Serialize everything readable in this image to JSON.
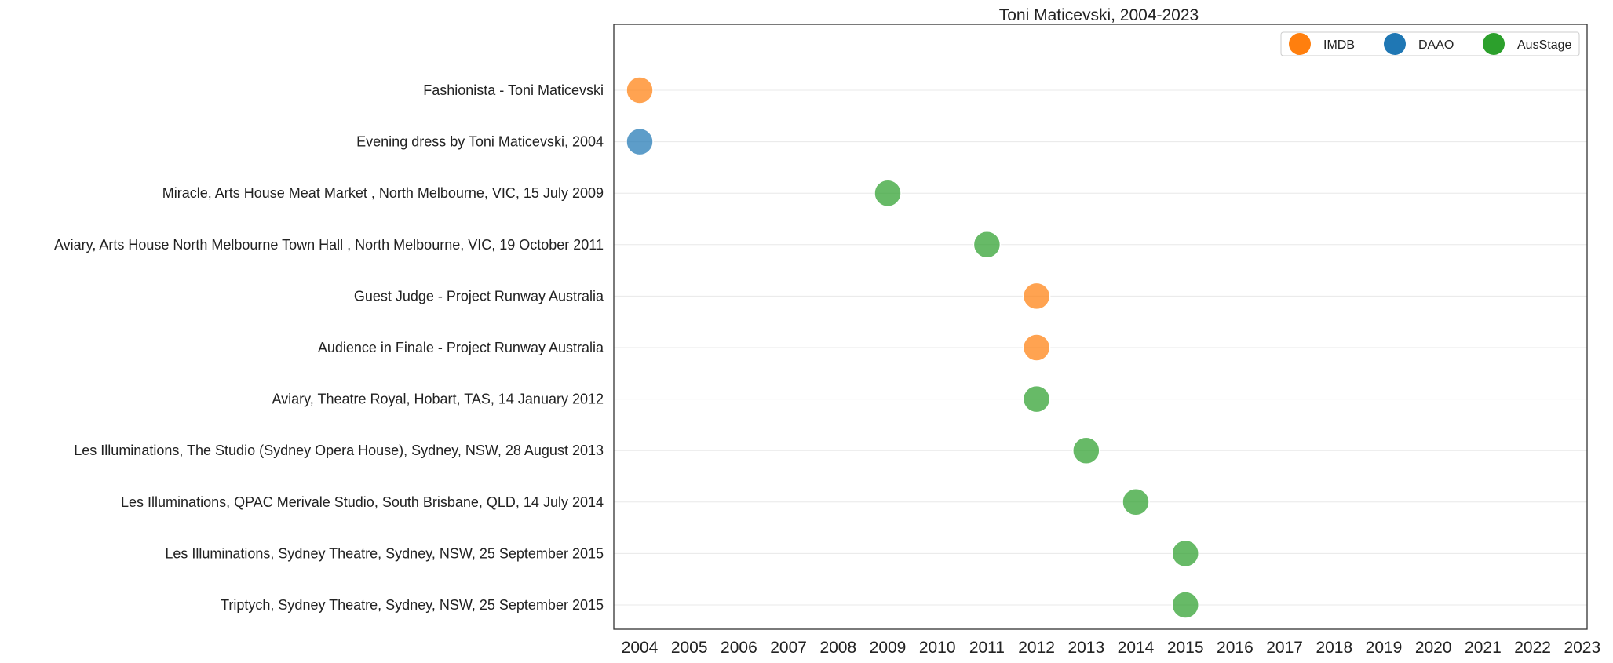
{
  "chart_data": {
    "type": "scatter",
    "title": "Toni Maticevski, 2004-2023",
    "xlabel": "",
    "ylabel": "",
    "xlim": [
      2003.6,
      2023
    ],
    "x_ticks": [
      "2004",
      "2005",
      "2006",
      "2007",
      "2008",
      "2009",
      "2010",
      "2011",
      "2012",
      "2013",
      "2014",
      "2015",
      "2016",
      "2017",
      "2018",
      "2019",
      "2020",
      "2021",
      "2022",
      "2023"
    ],
    "grid": "horizontal",
    "legend_position": "top-right",
    "legend": [
      {
        "name": "IMDB",
        "color": "#ff7f0e"
      },
      {
        "name": "DAAO",
        "color": "#1f77b4"
      },
      {
        "name": "AusStage",
        "color": "#2ca02c"
      }
    ],
    "categories": [
      "Fashionista - Toni Maticevski",
      "Evening dress by Toni Maticevski, 2004",
      "Miracle, Arts House Meat Market , North Melbourne, VIC, 15 July 2009",
      "Aviary, Arts House North Melbourne Town Hall , North Melbourne, VIC, 19 October 2011",
      "Guest Judge - Project Runway Australia ",
      "Audience in Finale - Project Runway Australia ",
      "Aviary, Theatre Royal, Hobart, TAS, 14 January 2012",
      "Les Illuminations, The Studio (Sydney Opera House), Sydney, NSW, 28 August 2013",
      "Les Illuminations, QPAC Merivale Studio, South Brisbane, QLD, 14 July 2014",
      "Les Illuminations, Sydney Theatre, Sydney, NSW, 25 September 2015",
      "Triptych, Sydney Theatre, Sydney, NSW, 25 September 2015"
    ],
    "points": [
      {
        "x": 2004,
        "source": "IMDB"
      },
      {
        "x": 2004,
        "source": "DAAO"
      },
      {
        "x": 2009,
        "source": "AusStage"
      },
      {
        "x": 2011,
        "source": "AusStage"
      },
      {
        "x": 2012,
        "source": "IMDB"
      },
      {
        "x": 2012,
        "source": "IMDB"
      },
      {
        "x": 2012,
        "source": "AusStage"
      },
      {
        "x": 2013,
        "source": "AusStage"
      },
      {
        "x": 2014,
        "source": "AusStage"
      },
      {
        "x": 2015,
        "source": "AusStage"
      },
      {
        "x": 2015,
        "source": "AusStage"
      }
    ]
  }
}
